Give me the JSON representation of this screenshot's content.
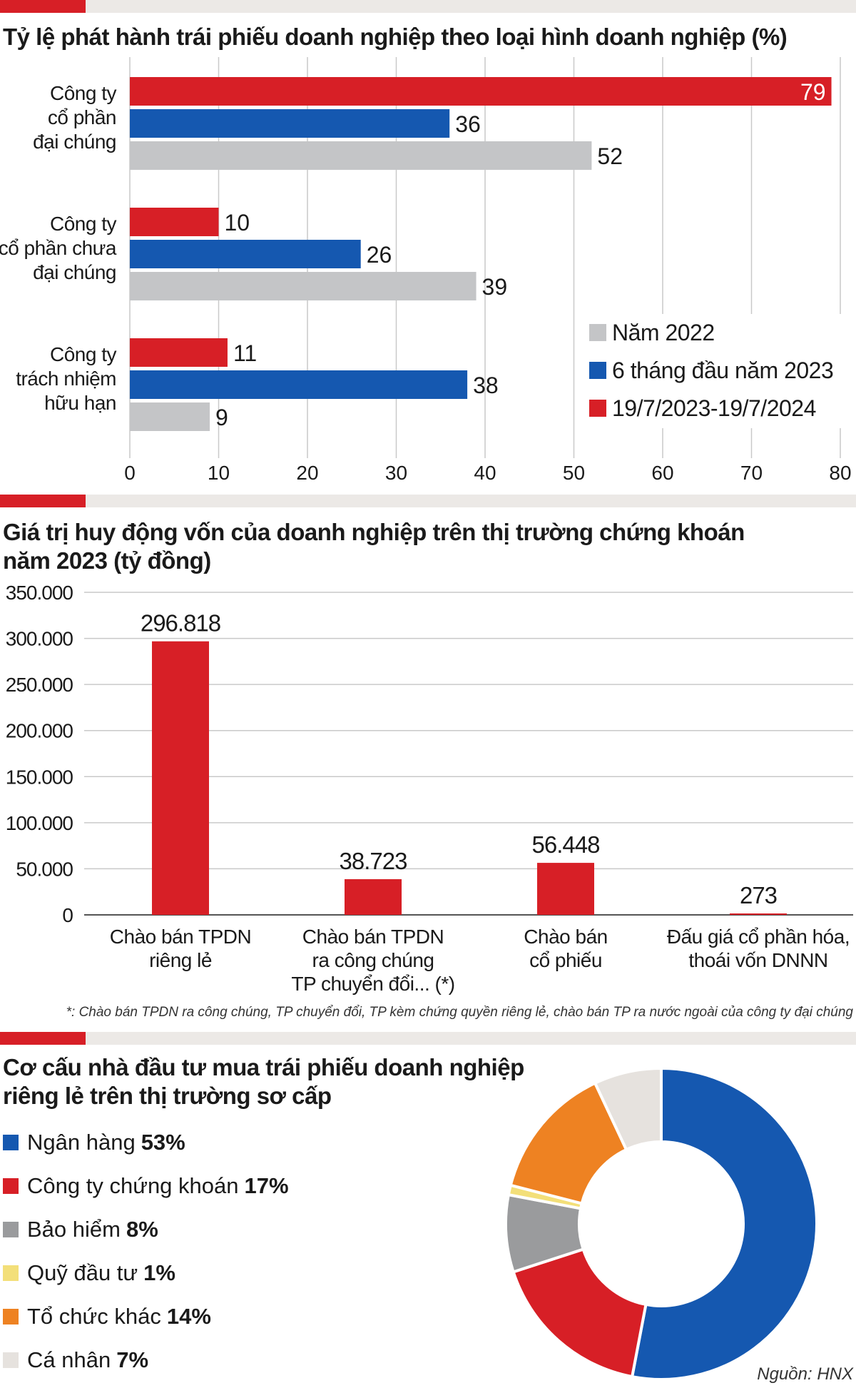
{
  "chart_data": [
    {
      "type": "bar",
      "orientation": "horizontal",
      "title": "Tỷ lệ phát hành trái phiếu doanh nghiệp theo loại hình doanh nghiệp (%)",
      "categories": [
        [
          "Công ty",
          "cổ phần",
          "đại chúng"
        ],
        [
          "Công ty",
          "cổ phần chưa",
          "đại chúng"
        ],
        [
          "Công ty",
          "trách nhiệm",
          "hữu hạn"
        ]
      ],
      "series": [
        {
          "name": "19/7/2023-19/7/2024",
          "color": "#d71f26",
          "values": [
            79,
            10,
            11
          ]
        },
        {
          "name": "6 tháng đầu năm 2023",
          "color": "#1558b0",
          "values": [
            36,
            26,
            38
          ]
        },
        {
          "name": "Năm 2022",
          "color": "#c4c5c7",
          "values": [
            52,
            39,
            9
          ]
        }
      ],
      "legend_order": [
        "Năm 2022",
        "6 tháng đầu năm 2023",
        "19/7/2023-19/7/2024"
      ],
      "legend_colors": [
        "#c4c5c7",
        "#1558b0",
        "#d71f26"
      ],
      "xlim": [
        0,
        80
      ],
      "xticks": [
        "0",
        "10",
        "20",
        "30",
        "40",
        "50",
        "60",
        "70",
        "80"
      ],
      "legend_position": "right",
      "grid": true
    },
    {
      "type": "bar",
      "title_lines": [
        "Giá trị huy động vốn của doanh nghiệp trên thị trường chứng khoán",
        "năm 2023 (tỷ đồng)"
      ],
      "categories": [
        [
          "Chào bán TPDN",
          "riêng lẻ"
        ],
        [
          "Chào bán TPDN",
          "ra công chúng",
          "TP chuyển đổi... (*)"
        ],
        [
          "Chào bán",
          "cổ phiếu"
        ],
        [
          "Đấu giá cổ phần hóa,",
          "thoái vốn DNNN"
        ]
      ],
      "values": [
        296818,
        38723,
        56448,
        273
      ],
      "value_labels": [
        "296.818",
        "38.723",
        "56.448",
        "273"
      ],
      "ylim": [
        0,
        350000
      ],
      "yticks": [
        "0",
        "50.000",
        "100.000",
        "150.000",
        "200.000",
        "250.000",
        "300.000",
        "350.000"
      ],
      "color": "#d71f26",
      "grid": true
    },
    {
      "type": "pie",
      "donut": true,
      "title_lines": [
        "Cơ cấu nhà đầu tư mua trái phiếu doanh nghiệp",
        "riêng lẻ trên thị trường sơ cấp"
      ],
      "slices": [
        {
          "label": "Ngân hàng",
          "value": 53,
          "display": "53%",
          "color": "#1558b0"
        },
        {
          "label": "Công ty chứng khoán",
          "value": 17,
          "display": "17%",
          "color": "#d71f26"
        },
        {
          "label": "Bảo hiểm",
          "value": 8,
          "display": "8%",
          "color": "#9a9b9d"
        },
        {
          "label": "Quỹ đầu tư",
          "value": 1,
          "display": "1%",
          "color": "#f3df79"
        },
        {
          "label": "Tổ chức khác",
          "value": 14,
          "display": "14%",
          "color": "#ee8222"
        },
        {
          "label": "Cá nhân",
          "value": 7,
          "display": "7%",
          "color": "#e6e2de"
        }
      ],
      "legend_position": "left"
    }
  ],
  "footnote": "*: Chào bán TPDN ra công chúng, TP chuyển đổi, TP kèm chứng quyền riêng lẻ, chào bán TP ra nước ngoài của công ty đại chúng",
  "source": "Nguồn: HNX"
}
